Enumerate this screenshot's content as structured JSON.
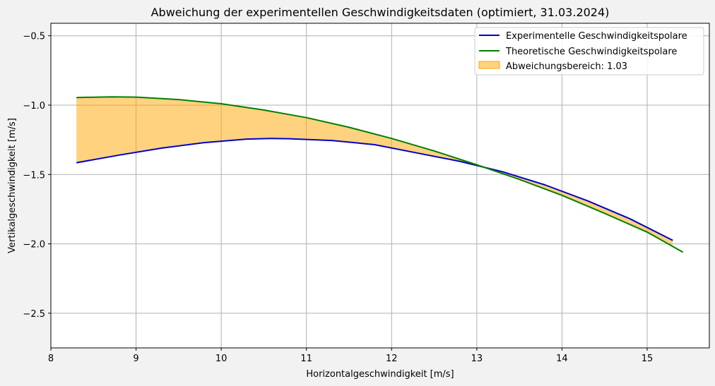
{
  "chart_data": {
    "type": "line",
    "title": "Abweichung der experimentellen Geschwindigkeitsdaten (optimiert, 31.03.2024)",
    "xlabel": "Horizontalgeschwindigkeit [m/s]",
    "ylabel": "Vertikalgeschwindigkeit [m/s]",
    "xlim": [
      8.0,
      15.73
    ],
    "ylim": [
      -2.75,
      -0.41
    ],
    "xticks": [
      8,
      9,
      10,
      11,
      12,
      13,
      14,
      15
    ],
    "xtick_labels": [
      "8",
      "9",
      "10",
      "11",
      "12",
      "13",
      "14",
      "15"
    ],
    "yticks": [
      -2.5,
      -2.0,
      -1.5,
      -1.0,
      -0.5
    ],
    "ytick_labels": [
      "−2.5",
      "−2.0",
      "−1.5",
      "−1.0",
      "−0.5"
    ],
    "grid": true,
    "legend_position": "top-right",
    "series": [
      {
        "name": "Experimentelle Geschwindigkeitspolare",
        "color": "#0000cc",
        "x": [
          8.3,
          8.8,
          9.3,
          9.8,
          10.3,
          10.6,
          10.8,
          11.3,
          11.8,
          12.3,
          12.8,
          13.3,
          13.8,
          14.3,
          14.8,
          15.3
        ],
        "y": [
          -1.415,
          -1.36,
          -1.31,
          -1.27,
          -1.245,
          -1.24,
          -1.242,
          -1.255,
          -1.285,
          -1.345,
          -1.405,
          -1.48,
          -1.575,
          -1.69,
          -1.82,
          -1.975
        ]
      },
      {
        "name": "Theoretische Geschwindigkeitspolare",
        "color": "#008000",
        "x": [
          8.3,
          8.72,
          9.0,
          9.5,
          10.0,
          10.5,
          11.0,
          11.5,
          12.0,
          12.5,
          13.0,
          13.5,
          14.0,
          14.5,
          15.0,
          15.42
        ],
        "y": [
          -0.945,
          -0.94,
          -0.942,
          -0.96,
          -0.99,
          -1.035,
          -1.09,
          -1.16,
          -1.24,
          -1.33,
          -1.43,
          -1.535,
          -1.65,
          -1.78,
          -1.915,
          -2.06
        ]
      }
    ],
    "fill_between": {
      "name": "Abweichungsbereich: 1.03",
      "color": "#ffa500",
      "opacity": 0.5,
      "x": [
        8.3,
        8.8,
        9.3,
        9.8,
        10.3,
        10.8,
        11.3,
        11.8,
        12.3,
        12.8,
        13.3,
        13.8,
        14.3,
        14.8,
        15.3
      ],
      "y_upper": [
        -0.945,
        -0.941,
        -0.951,
        -0.978,
        -1.015,
        -1.066,
        -1.131,
        -1.207,
        -1.294,
        -1.389,
        -1.491,
        -1.603,
        -1.725,
        -1.862,
        -2.01
      ],
      "y_lower": [
        -1.415,
        -1.36,
        -1.31,
        -1.27,
        -1.245,
        -1.242,
        -1.255,
        -1.285,
        -1.345,
        -1.405,
        -1.48,
        -1.575,
        -1.69,
        -1.82,
        -1.975
      ]
    }
  }
}
